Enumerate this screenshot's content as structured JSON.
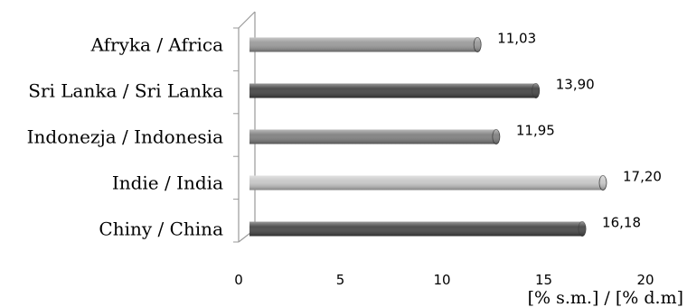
{
  "chart_data": {
    "type": "bar",
    "orientation": "horizontal",
    "categories": [
      "Afryka / Africa",
      "Sri Lanka / Sri Lanka",
      "Indonezja / Indonesia",
      "Indie / India",
      "Chiny / China"
    ],
    "values": [
      11.03,
      13.9,
      11.95,
      17.2,
      16.18
    ],
    "value_labels": [
      "11,03",
      "13,90",
      "11,95",
      "17,20",
      "16,18"
    ],
    "bar_colors": [
      "#9a9a9a",
      "#444444",
      "#808080",
      "#c8c8c8",
      "#474747"
    ],
    "xlim": [
      0,
      20
    ],
    "xticks": [
      0,
      5,
      10,
      15,
      20
    ],
    "xlabel": "[% s.m.] / [% d.m]",
    "grid": false,
    "legend": "none"
  }
}
